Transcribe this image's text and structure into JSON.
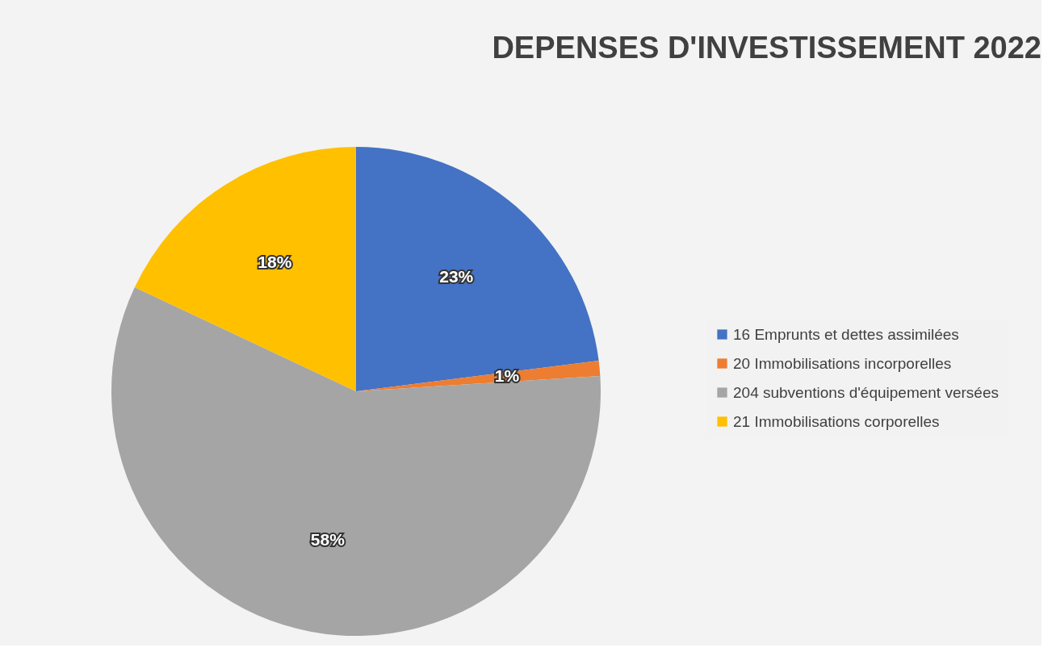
{
  "chart_data": {
    "type": "pie",
    "title": "DEPENSES D'INVESTISSEMENT 2022",
    "categories": [
      "16 Emprunts et dettes assimilées",
      "20 Immobilisations incorporelles",
      "204 subventions d'équipement versées",
      "21 Immobilisations corporelles"
    ],
    "values": [
      23,
      1,
      58,
      18
    ],
    "colors": [
      "#4472c4",
      "#ed7d31",
      "#a5a5a5",
      "#ffc000"
    ],
    "value_labels": [
      "23%",
      "1%",
      "58%",
      "18%"
    ],
    "legend": "right"
  }
}
